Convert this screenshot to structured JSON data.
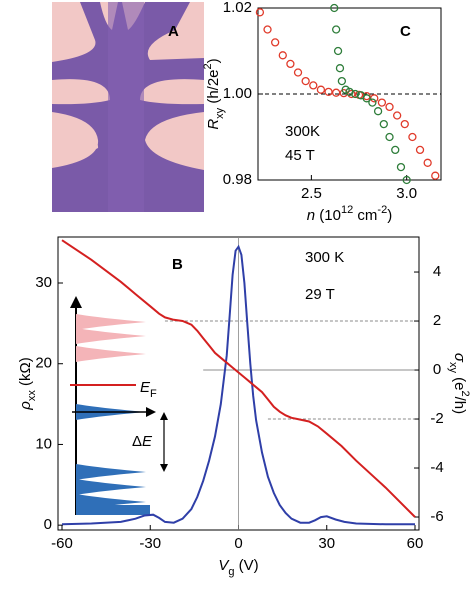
{
  "image_panel": {
    "label": "A"
  },
  "chart_data": [
    {
      "type": "scatter",
      "panel_label": "C",
      "xlabel": [
        {
          "text": "n",
          "pos": "italic"
        },
        {
          "text": " (10"
        },
        {
          "text": "12",
          "pos": "sup"
        },
        {
          "text": " cm"
        },
        {
          "text": "-2",
          "pos": "sup"
        },
        {
          "text": ")"
        }
      ],
      "ylabel": [
        {
          "text": "R",
          "pos": "italic"
        },
        {
          "text": "xy",
          "pos": "sub"
        },
        {
          "text": " (h/2e"
        },
        {
          "text": "2",
          "pos": "sup"
        },
        {
          "text": ")"
        }
      ],
      "xlim": [
        2.22,
        3.18
      ],
      "ylim": [
        0.98,
        1.02
      ],
      "xticks": [
        2.5,
        {
          "value": 3,
          "label": "3.0"
        }
      ],
      "yticks": [
        0.98,
        {
          "value": 1,
          "label": "1.00"
        },
        1.02
      ],
      "reference_line": 1,
      "series": [
        {
          "name": "300K",
          "color": "#e03a2a",
          "label_color": "#d42020",
          "x": [
            2.23,
            2.27,
            2.31,
            2.35,
            2.39,
            2.43,
            2.47,
            2.51,
            2.55,
            2.59,
            2.63,
            2.67,
            2.71,
            2.75,
            2.79,
            2.83,
            2.87,
            2.91,
            2.95,
            2.99,
            3.03,
            3.07,
            3.11,
            3.15
          ],
          "values": [
            1.019,
            1.015,
            1.012,
            1.009,
            1.007,
            1.005,
            1.003,
            1.002,
            1.001,
            1.0005,
            1.0003,
            1.0002,
            1.0,
            0.9998,
            0.9995,
            0.999,
            0.998,
            0.997,
            0.995,
            0.993,
            0.99,
            0.987,
            0.984,
            0.981
          ]
        },
        {
          "name": "45 T",
          "color": "#2e7d3a",
          "label_color": "#000000",
          "x": [
            2.62,
            2.63,
            2.64,
            2.65,
            2.66,
            2.68,
            2.7,
            2.73,
            2.76,
            2.79,
            2.82,
            2.85,
            2.88,
            2.91,
            2.94,
            2.97,
            3.0
          ],
          "values": [
            1.02,
            1.015,
            1.01,
            1.006,
            1.003,
            1.001,
            1.0005,
            1.0,
            0.9997,
            0.999,
            0.998,
            0.996,
            0.993,
            0.99,
            0.987,
            0.983,
            0.98
          ]
        }
      ]
    },
    {
      "type": "line",
      "panel_label": "B",
      "xlabel": [
        {
          "text": "V",
          "pos": "italic"
        },
        {
          "text": "g",
          "pos": "sub"
        },
        {
          "text": " (V)"
        }
      ],
      "ylabel": [
        {
          "text": "ρ",
          "pos": "italic"
        },
        {
          "text": "xx",
          "pos": "sub"
        },
        {
          "text": " (kΩ)"
        }
      ],
      "y2label": [
        {
          "text": "σ",
          "pos": "italic"
        },
        {
          "text": "xy",
          "pos": "sub"
        },
        {
          "text": " (e"
        },
        {
          "text": "2",
          "pos": "sup"
        },
        {
          "text": "/h)"
        }
      ],
      "xlim": [
        -60,
        60
      ],
      "ylim": [
        -0.6,
        35.7
      ],
      "y2lim": [
        -6.53,
        5.43
      ],
      "xticks": [
        -60,
        -30,
        0,
        30,
        60
      ],
      "yticks": [
        0,
        10,
        20,
        30
      ],
      "y2ticks": [
        -6,
        -4,
        -2,
        0,
        2,
        4
      ],
      "y2_reference_lines": [
        2,
        0,
        -2
      ],
      "x_reference_line": 0,
      "annotations": [
        {
          "text": "300 K",
          "color": "#d42020"
        },
        {
          "text": "29 T",
          "color": "#000000"
        }
      ],
      "inset_labels": [
        [
          {
            "text": "E",
            "pos": "italic"
          },
          {
            "text": "F",
            "pos": "sub"
          }
        ],
        [
          {
            "text": "Δ"
          },
          {
            "text": "E",
            "pos": "italic"
          }
        ]
      ],
      "series": [
        {
          "color": "#2f3fa8",
          "x": [
            -60,
            -50,
            -40,
            -35,
            -32,
            -29,
            -27,
            -25,
            -22,
            -19,
            -16,
            -14,
            -12,
            -10,
            -8,
            -6,
            -4,
            -3,
            -2,
            -1,
            0,
            1,
            2,
            3,
            4,
            5,
            6,
            8,
            10,
            12,
            14,
            16,
            18,
            21,
            24,
            26,
            28,
            30,
            33,
            36,
            40,
            50,
            60
          ],
          "values": [
            0.1,
            0.2,
            0.4,
            0.8,
            1.2,
            1.3,
            0.9,
            0.4,
            0.3,
            0.8,
            2,
            3.5,
            5.5,
            8,
            11,
            15,
            21,
            26,
            31,
            34,
            34.5,
            33.5,
            30,
            25,
            20,
            16,
            13,
            9,
            6,
            4,
            2.5,
            1.5,
            0.8,
            0.3,
            0.3,
            0.6,
            1.0,
            1.1,
            0.7,
            0.4,
            0.2,
            0.1,
            0.1
          ]
        },
        {
          "color": "#d42020",
          "axis": "y2",
          "x": [
            -60,
            -50,
            -40,
            -35,
            -30,
            -27,
            -25,
            -22,
            -19,
            -16,
            -14,
            -12,
            -10,
            -8,
            -6,
            -4,
            -2,
            0,
            2,
            4,
            6,
            8,
            10,
            12,
            14,
            16,
            18,
            20,
            24,
            27,
            30,
            35,
            40,
            50,
            60
          ],
          "values": [
            5.3,
            4.5,
            3.6,
            3.1,
            2.6,
            2.3,
            2.15,
            2.05,
            2.0,
            1.85,
            1.6,
            1.3,
            1.0,
            0.7,
            0.5,
            0.3,
            0.1,
            -0.1,
            -0.3,
            -0.5,
            -0.7,
            -0.9,
            -1.2,
            -1.5,
            -1.7,
            -1.85,
            -1.95,
            -2.0,
            -2.1,
            -2.3,
            -2.6,
            -3.1,
            -3.7,
            -4.8,
            -6.0
          ]
        }
      ]
    }
  ]
}
